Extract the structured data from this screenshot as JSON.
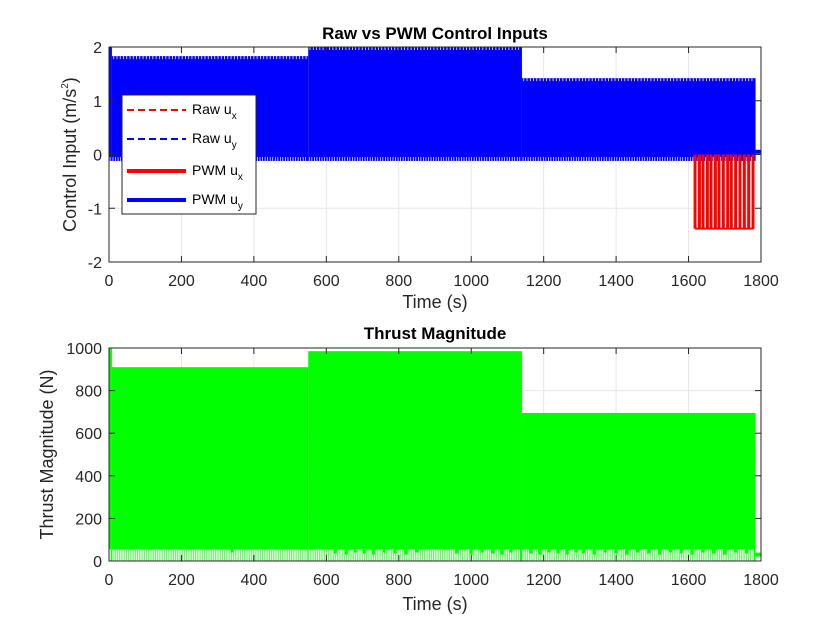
{
  "chart_data": [
    {
      "type": "line",
      "title": "Raw vs PWM Control Inputs",
      "xlabel": "Time (s)",
      "ylabel": {
        "base": "Control Input (m/s",
        "sup": "2",
        "close": ")"
      },
      "xlim": [
        0,
        1800
      ],
      "ylim": [
        -2,
        2
      ],
      "xticks": [
        0,
        200,
        400,
        600,
        800,
        1000,
        1200,
        1400,
        1600,
        1800
      ],
      "yticks": [
        -2,
        -1,
        0,
        1,
        2
      ],
      "grid": true,
      "legend_position": "left",
      "legend": [
        {
          "base": "Raw u",
          "sub": "x",
          "color": "#ff0000",
          "style": "dashed"
        },
        {
          "base": "Raw u",
          "sub": "y",
          "color": "#0000ff",
          "style": "dashed"
        },
        {
          "base": "PWM u",
          "sub": "x",
          "color": "#ff0000",
          "style": "solid"
        },
        {
          "base": "PWM u",
          "sub": "y",
          "color": "#0000ff",
          "style": "solid"
        }
      ],
      "series": [
        {
          "name": "PWM u_y",
          "color": "#0000ff",
          "low": -0.12,
          "segments": [
            {
              "x0": 0,
              "x1": 8,
              "high": 2.0
            },
            {
              "x0": 8,
              "x1": 550,
              "high": 1.83
            },
            {
              "x0": 550,
              "x1": 1140,
              "high": 2.0
            },
            {
              "x0": 1140,
              "x1": 1785,
              "high": 1.42
            }
          ],
          "tail": {
            "x0": 1785,
            "x1": 1800,
            "value": 0.05
          }
        },
        {
          "name": "PWM u_x",
          "color": "#ff0000",
          "range": [
            1618,
            1780
          ],
          "low": -1.38,
          "pulses": [
            1618,
            1630,
            1640,
            1652,
            1662,
            1674,
            1684,
            1696,
            1708,
            1718,
            1730,
            1742,
            1754,
            1766,
            1778
          ]
        }
      ]
    },
    {
      "type": "area",
      "title": "Thrust Magnitude",
      "xlabel": "Time (s)",
      "ylabel": "Thrust Magnitude (N)",
      "xlim": [
        0,
        1800
      ],
      "ylim": [
        0,
        1000
      ],
      "xticks": [
        0,
        200,
        400,
        600,
        800,
        1000,
        1200,
        1400,
        1600,
        1800
      ],
      "yticks": [
        0,
        200,
        400,
        600,
        800,
        1000
      ],
      "grid": true,
      "series": [
        {
          "name": "Thrust",
          "color": "#00ff00",
          "low": 55,
          "segments": [
            {
              "x0": 0,
              "x1": 8,
              "high": 1000
            },
            {
              "x0": 8,
              "x1": 550,
              "high": 910
            },
            {
              "x0": 550,
              "x1": 1140,
              "high": 985
            },
            {
              "x0": 1140,
              "x1": 1785,
              "high": 695
            }
          ],
          "tail": {
            "x0": 1785,
            "x1": 1800,
            "value": 30
          },
          "dips": [
            340,
            625,
            655,
            680,
            705,
            730,
            760,
            790,
            820,
            850,
            960,
            1000,
            1030,
            1060,
            1085,
            1110,
            1165,
            1190,
            1215,
            1240,
            1265,
            1290,
            1310,
            1340,
            1370,
            1400,
            1430,
            1460,
            1490,
            1520,
            1550,
            1580,
            1610,
            1640,
            1670,
            1700,
            1730,
            1760
          ]
        }
      ]
    }
  ]
}
